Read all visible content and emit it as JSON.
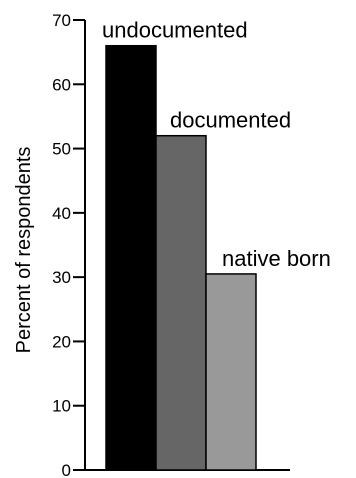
{
  "chart_data": {
    "type": "bar",
    "categories": [
      "undocumented",
      "documented",
      "native born"
    ],
    "values": [
      66,
      52,
      30.5
    ],
    "colors": [
      "#000000",
      "#666666",
      "#999999"
    ],
    "ylabel": "Percent of respondents",
    "xlabel": "",
    "ylim": [
      0,
      70
    ],
    "yticks": [
      0,
      10,
      20,
      30,
      40,
      50,
      60,
      70
    ],
    "legend": "none",
    "grid": false
  }
}
